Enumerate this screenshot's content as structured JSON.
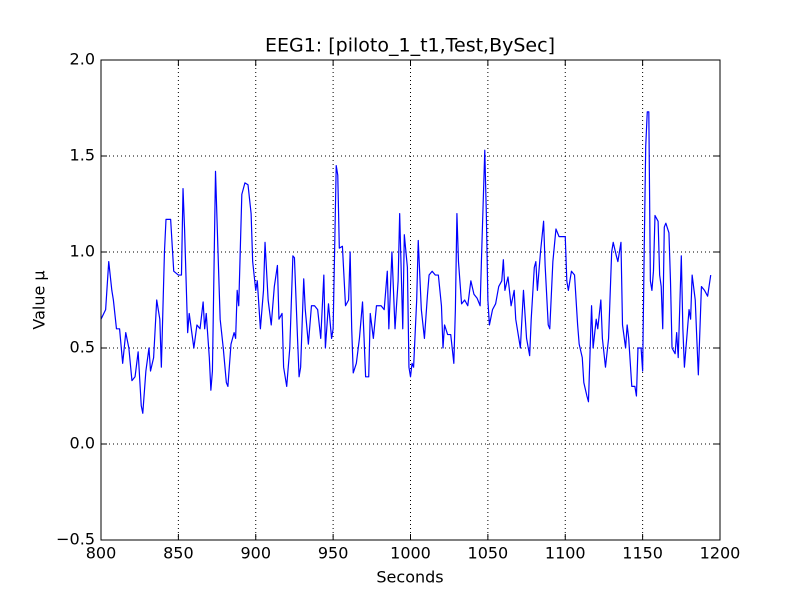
{
  "chart_data": {
    "type": "line",
    "title": "EEG1: [piloto_1_t1,Test,BySec]",
    "x_label": "Seconds",
    "y_label": "Value μ",
    "x": [
      800,
      803,
      805,
      807,
      808,
      810,
      812,
      814,
      816,
      818,
      820,
      822,
      824,
      826,
      827,
      829,
      831,
      832,
      834,
      836,
      838,
      839,
      841,
      842,
      845,
      847,
      850,
      852,
      853,
      854,
      856,
      857,
      860,
      862,
      864,
      866,
      867,
      868,
      870,
      871,
      872,
      874,
      876,
      877,
      879,
      881,
      882,
      884,
      886,
      887,
      888,
      889,
      891,
      893,
      895,
      897,
      898,
      900,
      901,
      903,
      905,
      906,
      908,
      910,
      912,
      914,
      915,
      917,
      918,
      920,
      922,
      924,
      925,
      927,
      928,
      929,
      931,
      932,
      934,
      936,
      938,
      940,
      942,
      944,
      945,
      947,
      949,
      950,
      952,
      953,
      954,
      956,
      958,
      960,
      961,
      962,
      963,
      965,
      967,
      969,
      970,
      971,
      973,
      974,
      976,
      978,
      981,
      983,
      985,
      986,
      988,
      990,
      992,
      993,
      995,
      996,
      998,
      999,
      1000,
      1001,
      1002,
      1004,
      1005,
      1007,
      1009,
      1011,
      1012,
      1014,
      1016,
      1018,
      1020,
      1021,
      1022,
      1024,
      1026,
      1028,
      1029,
      1030,
      1031,
      1033,
      1035,
      1037,
      1039,
      1041,
      1043,
      1045,
      1046,
      1048,
      1049,
      1050,
      1051,
      1053,
      1055,
      1057,
      1059,
      1060,
      1061,
      1063,
      1065,
      1067,
      1068,
      1070,
      1071,
      1073,
      1075,
      1077,
      1078,
      1080,
      1081,
      1082,
      1084,
      1086,
      1087,
      1089,
      1090,
      1092,
      1094,
      1096,
      1100,
      1101,
      1102,
      1104,
      1106,
      1108,
      1109,
      1111,
      1112,
      1114,
      1115,
      1117,
      1118,
      1120,
      1121,
      1123,
      1124,
      1126,
      1128,
      1130,
      1131,
      1133,
      1134,
      1136,
      1137,
      1139,
      1140,
      1141,
      1143,
      1145,
      1146,
      1147,
      1149,
      1150,
      1151,
      1152,
      1153,
      1154,
      1155,
      1156,
      1157,
      1158,
      1160,
      1161,
      1162,
      1163,
      1164,
      1165,
      1167,
      1168,
      1169,
      1171,
      1172,
      1173,
      1175,
      1176,
      1177,
      1179,
      1180,
      1181,
      1182,
      1184,
      1185,
      1186,
      1188,
      1190,
      1192,
      1194
    ],
    "series": [
      {
        "color": "#0000ff",
        "values": [
          0.65,
          0.7,
          0.95,
          0.8,
          0.75,
          0.6,
          0.6,
          0.42,
          0.58,
          0.5,
          0.33,
          0.35,
          0.48,
          0.2,
          0.16,
          0.38,
          0.5,
          0.38,
          0.45,
          0.75,
          0.65,
          0.4,
          1.0,
          1.17,
          1.17,
          0.9,
          0.88,
          0.88,
          1.33,
          1.12,
          0.58,
          0.68,
          0.5,
          0.62,
          0.6,
          0.74,
          0.6,
          0.68,
          0.45,
          0.28,
          0.38,
          1.42,
          0.9,
          0.65,
          0.5,
          0.32,
          0.3,
          0.52,
          0.58,
          0.55,
          0.8,
          0.72,
          1.3,
          1.36,
          1.35,
          1.2,
          0.95,
          0.8,
          0.85,
          0.6,
          0.8,
          1.05,
          0.75,
          0.62,
          0.82,
          0.93,
          0.65,
          0.68,
          0.4,
          0.3,
          0.5,
          0.98,
          0.97,
          0.55,
          0.35,
          0.4,
          0.86,
          0.7,
          0.52,
          0.72,
          0.72,
          0.7,
          0.55,
          0.88,
          0.5,
          0.73,
          0.55,
          0.6,
          1.45,
          1.4,
          1.02,
          1.03,
          0.72,
          0.75,
          1.0,
          0.6,
          0.37,
          0.42,
          0.55,
          0.74,
          0.55,
          0.35,
          0.35,
          0.68,
          0.55,
          0.72,
          0.72,
          0.7,
          0.9,
          0.6,
          1.0,
          0.6,
          0.85,
          1.2,
          0.6,
          1.09,
          0.92,
          0.4,
          0.35,
          0.42,
          0.4,
          0.75,
          1.06,
          0.7,
          0.55,
          0.78,
          0.88,
          0.9,
          0.88,
          0.88,
          0.72,
          0.5,
          0.62,
          0.57,
          0.57,
          0.42,
          0.7,
          1.2,
          0.95,
          0.73,
          0.75,
          0.72,
          0.85,
          0.78,
          0.76,
          0.72,
          1.0,
          1.53,
          1.2,
          0.75,
          0.62,
          0.7,
          0.73,
          0.82,
          0.85,
          0.96,
          0.8,
          0.87,
          0.72,
          0.8,
          0.65,
          0.55,
          0.5,
          0.8,
          0.55,
          0.46,
          0.65,
          0.92,
          0.95,
          0.8,
          1.0,
          1.16,
          0.93,
          0.62,
          0.6,
          0.95,
          1.12,
          1.08,
          1.08,
          0.85,
          0.8,
          0.9,
          0.88,
          0.62,
          0.52,
          0.45,
          0.32,
          0.25,
          0.22,
          0.72,
          0.5,
          0.65,
          0.6,
          0.75,
          0.55,
          0.4,
          0.55,
          1.0,
          1.05,
          0.98,
          0.95,
          1.05,
          0.62,
          0.5,
          0.62,
          0.55,
          0.3,
          0.3,
          0.25,
          0.5,
          0.5,
          0.38,
          1.0,
          1.55,
          1.73,
          1.73,
          0.85,
          0.8,
          0.9,
          1.19,
          1.16,
          0.88,
          0.82,
          0.6,
          1.13,
          1.15,
          1.1,
          0.85,
          0.5,
          0.47,
          0.58,
          0.45,
          0.98,
          0.6,
          0.4,
          0.6,
          0.7,
          0.65,
          0.88,
          0.75,
          0.55,
          0.36,
          0.82,
          0.8,
          0.77,
          0.88
        ]
      }
    ],
    "xlim": [
      800,
      1200
    ],
    "xticks": [
      800,
      850,
      900,
      950,
      1000,
      1050,
      1100,
      1150,
      1200
    ],
    "ylim": [
      -0.5,
      2.0
    ],
    "yticks": [
      {
        "value": -0.5,
        "label": "−0.5"
      },
      {
        "value": 0,
        "label": "0.0"
      },
      {
        "value": 0.5,
        "label": "0.5"
      },
      {
        "value": 1,
        "label": "1.0"
      },
      {
        "value": 1.5,
        "label": "1.5"
      },
      {
        "value": 2,
        "label": "2.0"
      }
    ],
    "grid": true
  }
}
